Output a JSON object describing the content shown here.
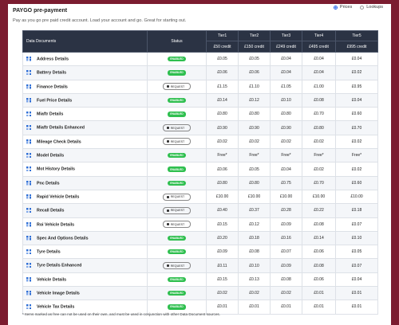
{
  "header": {
    "title": "PAYGO pre-payment",
    "subtitle": "Pay as you go pre paid credit account. Load your account and go. Great for starting out.",
    "options": [
      "Prices",
      "Lookups"
    ]
  },
  "table": {
    "columns": [
      "Data Documents",
      "Status",
      "Tier1",
      "Tier2",
      "Tier3",
      "Tier4",
      "Tier5"
    ],
    "credits": [
      "£50 credit",
      "£150 credit",
      "£249 credit",
      "£495 credit",
      "£995 credit"
    ],
    "rows": [
      {
        "name": "Address Details",
        "status": "ENABLED",
        "prices": [
          "£0.05",
          "£0.05",
          "£0.04",
          "£0.04",
          "£0.04"
        ]
      },
      {
        "name": "Battery Details",
        "status": "ENABLED",
        "prices": [
          "£0.06",
          "£0.06",
          "£0.04",
          "£0.04",
          "£0.02"
        ]
      },
      {
        "name": "Finance Details",
        "status": "REQUEST",
        "prices": [
          "£1.15",
          "£1.10",
          "£1.05",
          "£1.00",
          "£0.95"
        ]
      },
      {
        "name": "Fuel Price Details",
        "status": "ENABLED",
        "prices": [
          "£0.14",
          "£0.12",
          "£0.10",
          "£0.08",
          "£0.04"
        ]
      },
      {
        "name": "Miaftr Details",
        "status": "ENABLED",
        "prices": [
          "£0.80",
          "£0.80",
          "£0.80",
          "£0.70",
          "£0.60"
        ]
      },
      {
        "name": "Miaftr Details Enhanced",
        "status": "REQUEST",
        "prices": [
          "£0.90",
          "£0.90",
          "£0.90",
          "£0.80",
          "£0.70"
        ]
      },
      {
        "name": "Mileage Check Details",
        "status": "REQUEST",
        "prices": [
          "£0.02",
          "£0.02",
          "£0.02",
          "£0.02",
          "£0.02"
        ]
      },
      {
        "name": "Model Details",
        "status": "ENABLED",
        "prices": [
          "Free*",
          "Free*",
          "Free*",
          "Free*",
          "Free*"
        ]
      },
      {
        "name": "Mot History Details",
        "status": "ENABLED",
        "prices": [
          "£0.06",
          "£0.05",
          "£0.04",
          "£0.02",
          "£0.02"
        ]
      },
      {
        "name": "Pnc Details",
        "status": "ENABLED",
        "prices": [
          "£0.80",
          "£0.80",
          "£0.75",
          "£0.70",
          "£0.60"
        ]
      },
      {
        "name": "Rapid Vehicle Details",
        "status": "REQUEST",
        "prices": [
          "£10.00",
          "£10.00",
          "£10.00",
          "£10.00",
          "£10.00"
        ]
      },
      {
        "name": "Recall Details",
        "status": "REQUEST",
        "prices": [
          "£0.40",
          "£0.37",
          "£0.28",
          "£0.22",
          "£0.18"
        ]
      },
      {
        "name": "Roi Vehicle Details",
        "status": "REQUEST",
        "prices": [
          "£0.15",
          "£0.12",
          "£0.09",
          "£0.08",
          "£0.07"
        ]
      },
      {
        "name": "Spec And Options Details",
        "status": "ENABLED",
        "prices": [
          "£0.20",
          "£0.18",
          "£0.16",
          "£0.14",
          "£0.10"
        ]
      },
      {
        "name": "Tyre Details",
        "status": "ENABLED",
        "prices": [
          "£0.09",
          "£0.08",
          "£0.07",
          "£0.06",
          "£0.05"
        ]
      },
      {
        "name": "Tyre Details Enhanced",
        "status": "REQUEST",
        "prices": [
          "£0.11",
          "£0.10",
          "£0.09",
          "£0.08",
          "£0.07"
        ]
      },
      {
        "name": "Vehicle Details",
        "status": "ENABLED",
        "prices": [
          "£0.15",
          "£0.13",
          "£0.08",
          "£0.06",
          "£0.04"
        ]
      },
      {
        "name": "Vehicle Image Details",
        "status": "ENABLED",
        "prices": [
          "£0.02",
          "£0.02",
          "£0.02",
          "£0.01",
          "£0.01"
        ]
      },
      {
        "name": "Vehicle Tax Details",
        "status": "ENABLED",
        "prices": [
          "£0.01",
          "£0.01",
          "£0.01",
          "£0.01",
          "£0.01"
        ]
      }
    ]
  },
  "footnote": "* Items marked as free can not be used on their own, and must be used in conjunction with other Data Document sources."
}
